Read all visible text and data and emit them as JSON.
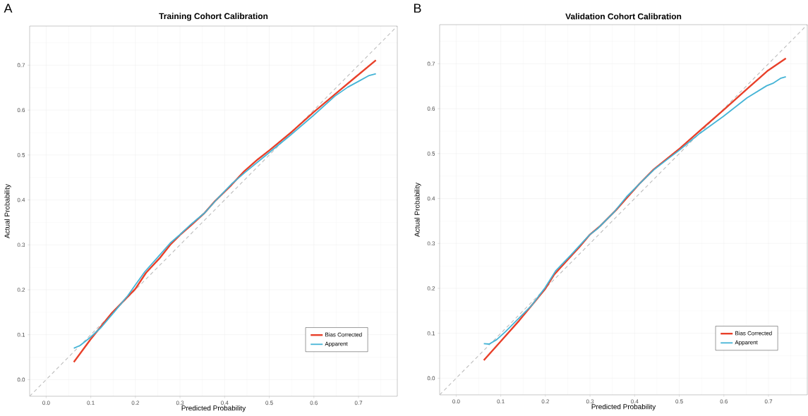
{
  "chart_data": [
    {
      "type": "line",
      "title": "Training Cohort Calibration",
      "xlabel": "Predicted Probability",
      "ylabel": "Actual Probability",
      "annotations": [
        "A"
      ],
      "xlim": [
        -0.037,
        0.787
      ],
      "ylim": [
        -0.037,
        0.787
      ],
      "xticks": [
        {
          "value": 0,
          "label": "0.0"
        },
        0.1,
        0.2,
        0.3,
        0.4,
        0.5,
        0.6,
        0.7
      ],
      "yticks": [
        {
          "value": 0,
          "label": "0.0"
        },
        0.1,
        0.2,
        0.3,
        0.4,
        0.5,
        0.6,
        0.7
      ],
      "grid": true,
      "legend": "bottom right",
      "series": [
        {
          "type": "line",
          "line_style": "dashed",
          "color": "#bdbdbd",
          "x": [
            -0.037,
            0.787
          ],
          "values": [
            -0.037,
            0.787
          ]
        },
        {
          "name": "Bias Corrected",
          "color": "#e8402a",
          "x": [
            0.062,
            0.099,
            0.147,
            0.2,
            0.224,
            0.254,
            0.278,
            0.302,
            0.325,
            0.355,
            0.379,
            0.415,
            0.444,
            0.474,
            0.501,
            0.551,
            0.599,
            0.647,
            0.694,
            0.739
          ],
          "values": [
            0.039,
            0.089,
            0.148,
            0.202,
            0.238,
            0.27,
            0.3,
            0.324,
            0.344,
            0.371,
            0.398,
            0.433,
            0.464,
            0.49,
            0.511,
            0.552,
            0.595,
            0.635,
            0.674,
            0.711
          ]
        },
        {
          "name": "Apparent",
          "color": "#45b4d6",
          "x": [
            0.062,
            0.076,
            0.099,
            0.123,
            0.153,
            0.183,
            0.2,
            0.221,
            0.248,
            0.278,
            0.299,
            0.325,
            0.355,
            0.385,
            0.415,
            0.444,
            0.492,
            0.546,
            0.599,
            0.647,
            0.676,
            0.7,
            0.724,
            0.739
          ],
          "values": [
            0.07,
            0.076,
            0.094,
            0.116,
            0.151,
            0.187,
            0.211,
            0.24,
            0.27,
            0.304,
            0.322,
            0.346,
            0.371,
            0.404,
            0.435,
            0.46,
            0.499,
            0.543,
            0.588,
            0.631,
            0.651,
            0.664,
            0.677,
            0.681
          ]
        }
      ]
    },
    {
      "type": "line",
      "title": "Validation Cohort Calibration",
      "xlabel": "Predicted Probability",
      "ylabel": "Actual Probability",
      "annotations": [
        "B"
      ],
      "xlim": [
        -0.037,
        0.787
      ],
      "ylim": [
        -0.037,
        0.787
      ],
      "xticks": [
        {
          "value": 0,
          "label": "0.0"
        },
        0.1,
        0.2,
        0.3,
        0.4,
        0.5,
        0.6,
        0.7
      ],
      "yticks": [
        {
          "value": 0,
          "label": "0.0"
        },
        0.1,
        0.2,
        0.3,
        0.4,
        0.5,
        0.6,
        0.7
      ],
      "grid": true,
      "legend": "bottom right",
      "series": [
        {
          "type": "line",
          "line_style": "dashed",
          "color": "#bdbdbd",
          "x": [
            -0.037,
            0.787
          ],
          "values": [
            -0.037,
            0.787
          ]
        },
        {
          "name": "Bias Corrected",
          "color": "#e8402a",
          "x": [
            0.062,
            0.099,
            0.141,
            0.199,
            0.22,
            0.252,
            0.276,
            0.299,
            0.323,
            0.358,
            0.382,
            0.411,
            0.443,
            0.473,
            0.502,
            0.552,
            0.599,
            0.652,
            0.699,
            0.739
          ],
          "values": [
            0.04,
            0.081,
            0.128,
            0.198,
            0.231,
            0.266,
            0.292,
            0.319,
            0.339,
            0.374,
            0.401,
            0.433,
            0.465,
            0.489,
            0.512,
            0.556,
            0.597,
            0.644,
            0.685,
            0.712
          ]
        },
        {
          "name": "Apparent",
          "color": "#45b4d6",
          "x": [
            0.062,
            0.074,
            0.091,
            0.111,
            0.135,
            0.17,
            0.199,
            0.223,
            0.258,
            0.282,
            0.299,
            0.317,
            0.355,
            0.382,
            0.411,
            0.443,
            0.473,
            0.502,
            0.546,
            0.599,
            0.652,
            0.696,
            0.711,
            0.728,
            0.739
          ],
          "values": [
            0.077,
            0.076,
            0.086,
            0.104,
            0.128,
            0.163,
            0.201,
            0.239,
            0.275,
            0.301,
            0.319,
            0.333,
            0.371,
            0.404,
            0.433,
            0.464,
            0.487,
            0.509,
            0.545,
            0.583,
            0.624,
            0.651,
            0.657,
            0.668,
            0.671
          ]
        }
      ]
    }
  ]
}
